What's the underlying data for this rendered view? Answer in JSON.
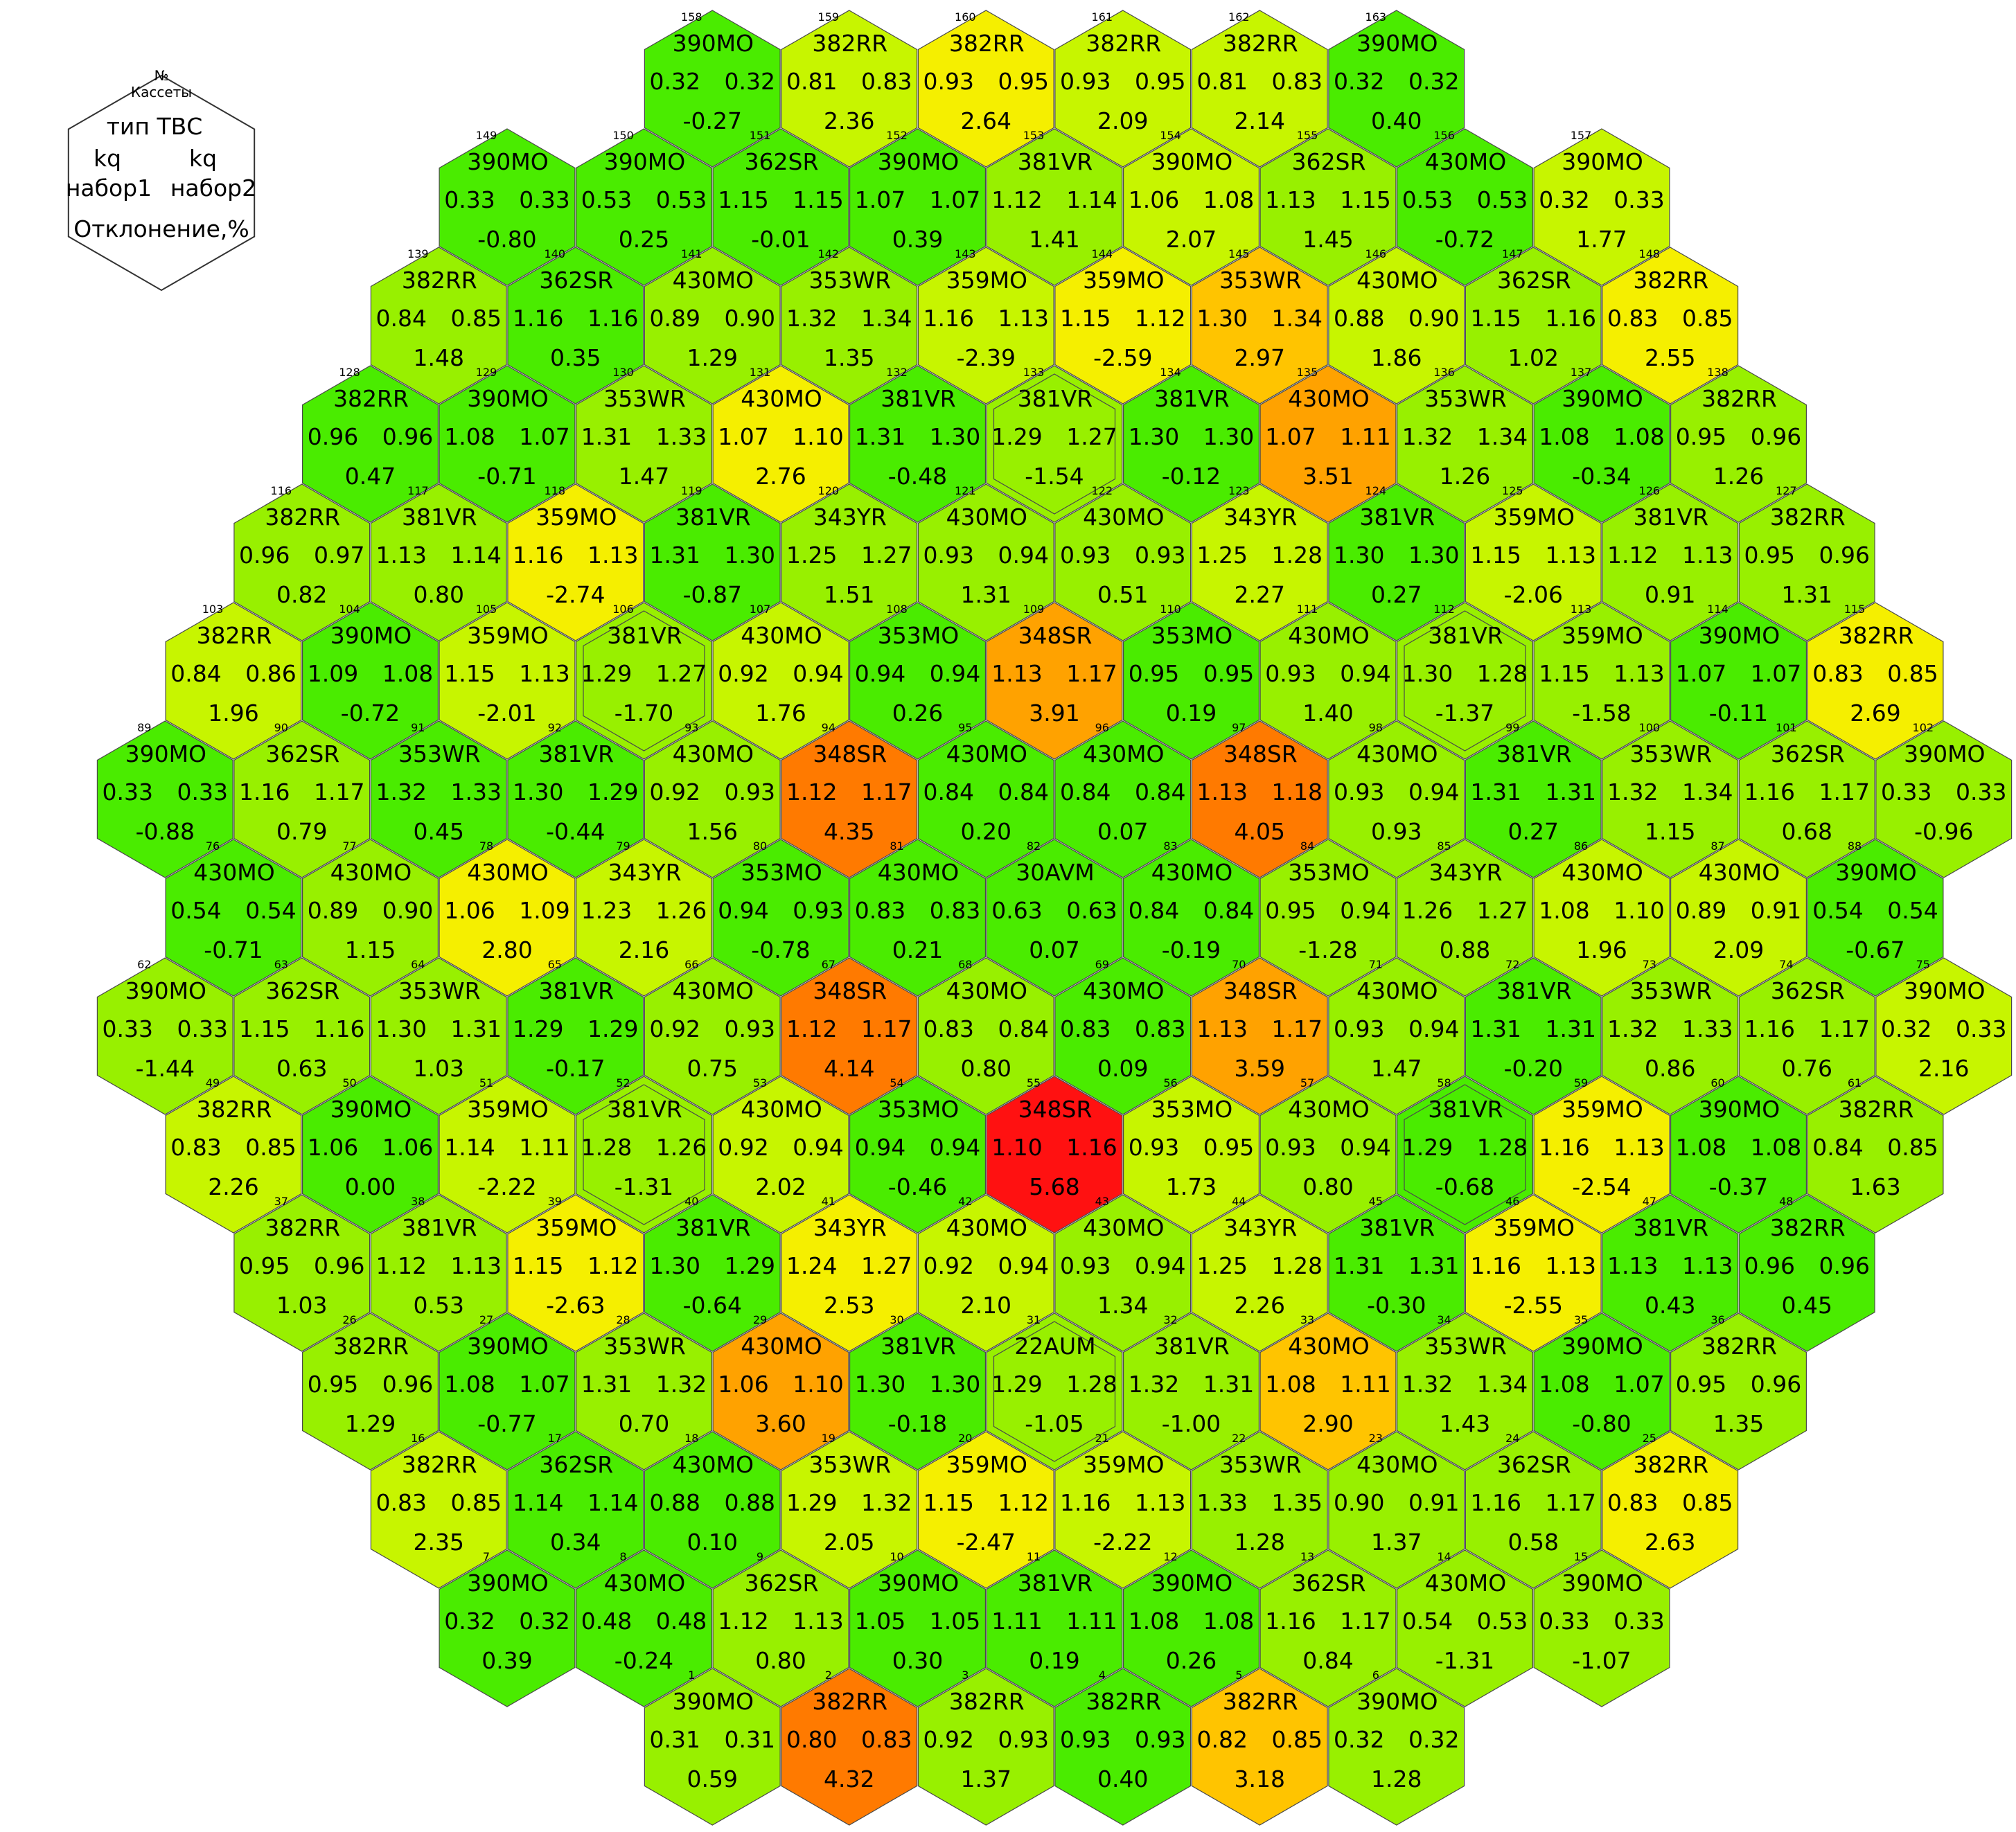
{
  "legend": {
    "num": "№",
    "label": "Кассеты",
    "type_label": "тип ТВС",
    "kq1_label": "kq",
    "kq2_label": "kq",
    "set1_label": "набор1",
    "set2_label": "набор2",
    "deviation_label": "Отклонение,%"
  },
  "colors": {
    "border": "#4a4a4a",
    "legend_border": "#333333",
    "scale": [
      "#00e000",
      "#4aec00",
      "#98f000",
      "#c7f500",
      "#f5ef00",
      "#ffc400",
      "#ffa200",
      "#ff7a00",
      "#ff1111"
    ]
  },
  "rows": [
    {
      "cells": [
        [
          158,
          "390MO",
          "0.32",
          "0.32",
          "-0.27"
        ],
        [
          159,
          "382RR",
          "0.81",
          "0.83",
          "2.36"
        ],
        [
          160,
          "382RR",
          "0.93",
          "0.95",
          "2.64"
        ],
        [
          161,
          "382RR",
          "0.93",
          "0.95",
          "2.09"
        ],
        [
          162,
          "382RR",
          "0.81",
          "0.83",
          "2.14"
        ],
        [
          163,
          "390MO",
          "0.32",
          "0.32",
          "0.40"
        ]
      ]
    },
    {
      "cells": [
        [
          149,
          "390MO",
          "0.33",
          "0.33",
          "-0.80"
        ],
        [
          150,
          "390MO",
          "0.53",
          "0.53",
          "0.25"
        ],
        [
          151,
          "362SR",
          "1.15",
          "1.15",
          "-0.01"
        ],
        [
          152,
          "390MO",
          "1.07",
          "1.07",
          "0.39"
        ],
        [
          153,
          "381VR",
          "1.12",
          "1.14",
          "1.41"
        ],
        [
          154,
          "390MO",
          "1.06",
          "1.08",
          "2.07"
        ],
        [
          155,
          "362SR",
          "1.13",
          "1.15",
          "1.45"
        ],
        [
          156,
          "430MO",
          "0.53",
          "0.53",
          "-0.72"
        ],
        [
          157,
          "390MO",
          "0.32",
          "0.33",
          "1.77"
        ]
      ]
    },
    {
      "cells": [
        [
          139,
          "382RR",
          "0.84",
          "0.85",
          "1.48"
        ],
        [
          140,
          "362SR",
          "1.16",
          "1.16",
          "0.35"
        ],
        [
          141,
          "430MO",
          "0.89",
          "0.90",
          "1.29"
        ],
        [
          142,
          "353WR",
          "1.32",
          "1.34",
          "1.35"
        ],
        [
          143,
          "359MO",
          "1.16",
          "1.13",
          "-2.39"
        ],
        [
          144,
          "359MO",
          "1.15",
          "1.12",
          "-2.59"
        ],
        [
          145,
          "353WR",
          "1.30",
          "1.34",
          "2.97"
        ],
        [
          146,
          "430MO",
          "0.88",
          "0.90",
          "1.86"
        ],
        [
          147,
          "362SR",
          "1.15",
          "1.16",
          "1.02"
        ],
        [
          148,
          "382RR",
          "0.83",
          "0.85",
          "2.55"
        ]
      ]
    },
    {
      "cells": [
        [
          128,
          "382RR",
          "0.96",
          "0.96",
          "0.47"
        ],
        [
          129,
          "390MO",
          "1.08",
          "1.07",
          "-0.71"
        ],
        [
          130,
          "353WR",
          "1.31",
          "1.33",
          "1.47"
        ],
        [
          131,
          "430MO",
          "1.07",
          "1.10",
          "2.76"
        ],
        [
          132,
          "381VR",
          "1.31",
          "1.30",
          "-0.48"
        ],
        [
          133,
          "381VR",
          "1.29",
          "1.27",
          "-1.54"
        ],
        [
          134,
          "381VR",
          "1.30",
          "1.30",
          "-0.12"
        ],
        [
          135,
          "430MO",
          "1.07",
          "1.11",
          "3.51"
        ],
        [
          136,
          "353WR",
          "1.32",
          "1.34",
          "1.26"
        ],
        [
          137,
          "390MO",
          "1.08",
          "1.08",
          "-0.34"
        ],
        [
          138,
          "382RR",
          "0.95",
          "0.96",
          "1.26"
        ]
      ]
    },
    {
      "cells": [
        [
          116,
          "382RR",
          "0.96",
          "0.97",
          "0.82"
        ],
        [
          117,
          "381VR",
          "1.13",
          "1.14",
          "0.80"
        ],
        [
          118,
          "359MO",
          "1.16",
          "1.13",
          "-2.74"
        ],
        [
          119,
          "381VR",
          "1.31",
          "1.30",
          "-0.87"
        ],
        [
          120,
          "343YR",
          "1.25",
          "1.27",
          "1.51"
        ],
        [
          121,
          "430MO",
          "0.93",
          "0.94",
          "1.31"
        ],
        [
          122,
          "430MO",
          "0.93",
          "0.93",
          "0.51"
        ],
        [
          123,
          "343YR",
          "1.25",
          "1.28",
          "2.27"
        ],
        [
          124,
          "381VR",
          "1.30",
          "1.30",
          "0.27"
        ],
        [
          125,
          "359MO",
          "1.15",
          "1.13",
          "-2.06"
        ],
        [
          126,
          "381VR",
          "1.12",
          "1.13",
          "0.91"
        ],
        [
          127,
          "382RR",
          "0.95",
          "0.96",
          "1.31"
        ]
      ]
    },
    {
      "cells": [
        [
          103,
          "382RR",
          "0.84",
          "0.86",
          "1.96"
        ],
        [
          104,
          "390MO",
          "1.09",
          "1.08",
          "-0.72"
        ],
        [
          105,
          "359MO",
          "1.15",
          "1.13",
          "-2.01"
        ],
        [
          106,
          "381VR",
          "1.29",
          "1.27",
          "-1.70"
        ],
        [
          107,
          "430MO",
          "0.92",
          "0.94",
          "1.76"
        ],
        [
          108,
          "353MO",
          "0.94",
          "0.94",
          "0.26"
        ],
        [
          109,
          "348SR",
          "1.13",
          "1.17",
          "3.91"
        ],
        [
          110,
          "353MO",
          "0.95",
          "0.95",
          "0.19"
        ],
        [
          111,
          "430MO",
          "0.93",
          "0.94",
          "1.40"
        ],
        [
          112,
          "381VR",
          "1.30",
          "1.28",
          "-1.37"
        ],
        [
          113,
          "359MO",
          "1.15",
          "1.13",
          "-1.58"
        ],
        [
          114,
          "390MO",
          "1.07",
          "1.07",
          "-0.11"
        ],
        [
          115,
          "382RR",
          "0.83",
          "0.85",
          "2.69"
        ]
      ]
    },
    {
      "cells": [
        [
          89,
          "390MO",
          "0.33",
          "0.33",
          "-0.88"
        ],
        [
          90,
          "362SR",
          "1.16",
          "1.17",
          "0.79"
        ],
        [
          91,
          "353WR",
          "1.32",
          "1.33",
          "0.45"
        ],
        [
          92,
          "381VR",
          "1.30",
          "1.29",
          "-0.44"
        ],
        [
          93,
          "430MO",
          "0.92",
          "0.93",
          "1.56"
        ],
        [
          94,
          "348SR",
          "1.12",
          "1.17",
          "4.35"
        ],
        [
          95,
          "430MO",
          "0.84",
          "0.84",
          "0.20"
        ],
        [
          96,
          "430MO",
          "0.84",
          "0.84",
          "0.07"
        ],
        [
          97,
          "348SR",
          "1.13",
          "1.18",
          "4.05"
        ],
        [
          98,
          "430MO",
          "0.93",
          "0.94",
          "0.93"
        ],
        [
          99,
          "381VR",
          "1.31",
          "1.31",
          "0.27"
        ],
        [
          100,
          "353WR",
          "1.32",
          "1.34",
          "1.15"
        ],
        [
          101,
          "362SR",
          "1.16",
          "1.17",
          "0.68"
        ],
        [
          102,
          "390MO",
          "0.33",
          "0.33",
          "-0.96"
        ]
      ]
    },
    {
      "cells": [
        [
          76,
          "430MO",
          "0.54",
          "0.54",
          "-0.71"
        ],
        [
          77,
          "430MO",
          "0.89",
          "0.90",
          "1.15"
        ],
        [
          78,
          "430MO",
          "1.06",
          "1.09",
          "2.80"
        ],
        [
          79,
          "343YR",
          "1.23",
          "1.26",
          "2.16"
        ],
        [
          80,
          "353MO",
          "0.94",
          "0.93",
          "-0.78"
        ],
        [
          81,
          "430MO",
          "0.83",
          "0.83",
          "0.21"
        ],
        [
          82,
          "30AVM",
          "0.63",
          "0.63",
          "0.07"
        ],
        [
          83,
          "430MO",
          "0.84",
          "0.84",
          "-0.19"
        ],
        [
          84,
          "353MO",
          "0.95",
          "0.94",
          "-1.28"
        ],
        [
          85,
          "343YR",
          "1.26",
          "1.27",
          "0.88"
        ],
        [
          86,
          "430MO",
          "1.08",
          "1.10",
          "1.96"
        ],
        [
          87,
          "430MO",
          "0.89",
          "0.91",
          "2.09"
        ],
        [
          88,
          "390MO",
          "0.54",
          "0.54",
          "-0.67"
        ]
      ]
    },
    {
      "cells": [
        [
          62,
          "390MO",
          "0.33",
          "0.33",
          "-1.44"
        ],
        [
          63,
          "362SR",
          "1.15",
          "1.16",
          "0.63"
        ],
        [
          64,
          "353WR",
          "1.30",
          "1.31",
          "1.03"
        ],
        [
          65,
          "381VR",
          "1.29",
          "1.29",
          "-0.17"
        ],
        [
          66,
          "430MO",
          "0.92",
          "0.93",
          "0.75"
        ],
        [
          67,
          "348SR",
          "1.12",
          "1.17",
          "4.14"
        ],
        [
          68,
          "430MO",
          "0.83",
          "0.84",
          "0.80"
        ],
        [
          69,
          "430MO",
          "0.83",
          "0.83",
          "0.09"
        ],
        [
          70,
          "348SR",
          "1.13",
          "1.17",
          "3.59"
        ],
        [
          71,
          "430MO",
          "0.93",
          "0.94",
          "1.47"
        ],
        [
          72,
          "381VR",
          "1.31",
          "1.31",
          "-0.20"
        ],
        [
          73,
          "353WR",
          "1.32",
          "1.33",
          "0.86"
        ],
        [
          74,
          "362SR",
          "1.16",
          "1.17",
          "0.76"
        ],
        [
          75,
          "390MO",
          "0.32",
          "0.33",
          "2.16"
        ]
      ]
    },
    {
      "cells": [
        [
          49,
          "382RR",
          "0.83",
          "0.85",
          "2.26"
        ],
        [
          50,
          "390MO",
          "1.06",
          "1.06",
          "0.00"
        ],
        [
          51,
          "359MO",
          "1.14",
          "1.11",
          "-2.22"
        ],
        [
          52,
          "381VR",
          "1.28",
          "1.26",
          "-1.31"
        ],
        [
          53,
          "430MO",
          "0.92",
          "0.94",
          "2.02"
        ],
        [
          54,
          "353MO",
          "0.94",
          "0.94",
          "-0.46"
        ],
        [
          55,
          "348SR",
          "1.10",
          "1.16",
          "5.68"
        ],
        [
          56,
          "353MO",
          "0.93",
          "0.95",
          "1.73"
        ],
        [
          57,
          "430MO",
          "0.93",
          "0.94",
          "0.80"
        ],
        [
          58,
          "381VR",
          "1.29",
          "1.28",
          "-0.68"
        ],
        [
          59,
          "359MO",
          "1.16",
          "1.13",
          "-2.54"
        ],
        [
          60,
          "390MO",
          "1.08",
          "1.08",
          "-0.37"
        ],
        [
          61,
          "382RR",
          "0.84",
          "0.85",
          "1.63"
        ]
      ]
    },
    {
      "cells": [
        [
          37,
          "382RR",
          "0.95",
          "0.96",
          "1.03"
        ],
        [
          38,
          "381VR",
          "1.12",
          "1.13",
          "0.53"
        ],
        [
          39,
          "359MO",
          "1.15",
          "1.12",
          "-2.63"
        ],
        [
          40,
          "381VR",
          "1.30",
          "1.29",
          "-0.64"
        ],
        [
          41,
          "343YR",
          "1.24",
          "1.27",
          "2.53"
        ],
        [
          42,
          "430MO",
          "0.92",
          "0.94",
          "2.10"
        ],
        [
          43,
          "430MO",
          "0.93",
          "0.94",
          "1.34"
        ],
        [
          44,
          "343YR",
          "1.25",
          "1.28",
          "2.26"
        ],
        [
          45,
          "381VR",
          "1.31",
          "1.31",
          "-0.30"
        ],
        [
          46,
          "359MO",
          "1.16",
          "1.13",
          "-2.55"
        ],
        [
          47,
          "381VR",
          "1.13",
          "1.13",
          "0.43"
        ],
        [
          48,
          "382RR",
          "0.96",
          "0.96",
          "0.45"
        ]
      ]
    },
    {
      "cells": [
        [
          26,
          "382RR",
          "0.95",
          "0.96",
          "1.29"
        ],
        [
          27,
          "390MO",
          "1.08",
          "1.07",
          "-0.77"
        ],
        [
          28,
          "353WR",
          "1.31",
          "1.32",
          "0.70"
        ],
        [
          29,
          "430MO",
          "1.06",
          "1.10",
          "3.60"
        ],
        [
          30,
          "381VR",
          "1.30",
          "1.30",
          "-0.18"
        ],
        [
          31,
          "22AUM",
          "1.29",
          "1.28",
          "-1.05"
        ],
        [
          32,
          "381VR",
          "1.32",
          "1.31",
          "-1.00"
        ],
        [
          33,
          "430MO",
          "1.08",
          "1.11",
          "2.90"
        ],
        [
          34,
          "353WR",
          "1.32",
          "1.34",
          "1.43"
        ],
        [
          35,
          "390MO",
          "1.08",
          "1.07",
          "-0.80"
        ],
        [
          36,
          "382RR",
          "0.95",
          "0.96",
          "1.35"
        ]
      ]
    },
    {
      "cells": [
        [
          16,
          "382RR",
          "0.83",
          "0.85",
          "2.35"
        ],
        [
          17,
          "362SR",
          "1.14",
          "1.14",
          "0.34"
        ],
        [
          18,
          "430MO",
          "0.88",
          "0.88",
          "0.10"
        ],
        [
          19,
          "353WR",
          "1.29",
          "1.32",
          "2.05"
        ],
        [
          20,
          "359MO",
          "1.15",
          "1.12",
          "-2.47"
        ],
        [
          21,
          "359MO",
          "1.16",
          "1.13",
          "-2.22"
        ],
        [
          22,
          "353WR",
          "1.33",
          "1.35",
          "1.28"
        ],
        [
          23,
          "430MO",
          "0.90",
          "0.91",
          "1.37"
        ],
        [
          24,
          "362SR",
          "1.16",
          "1.17",
          "0.58"
        ],
        [
          25,
          "382RR",
          "0.83",
          "0.85",
          "2.63"
        ]
      ]
    },
    {
      "cells": [
        [
          7,
          "390MO",
          "0.32",
          "0.32",
          "0.39"
        ],
        [
          8,
          "430MO",
          "0.48",
          "0.48",
          "-0.24"
        ],
        [
          9,
          "362SR",
          "1.12",
          "1.13",
          "0.80"
        ],
        [
          10,
          "390MO",
          "1.05",
          "1.05",
          "0.30"
        ],
        [
          11,
          "381VR",
          "1.11",
          "1.11",
          "0.19"
        ],
        [
          12,
          "390MO",
          "1.08",
          "1.08",
          "0.26"
        ],
        [
          13,
          "362SR",
          "1.16",
          "1.17",
          "0.84"
        ],
        [
          14,
          "430MO",
          "0.54",
          "0.53",
          "-1.31"
        ],
        [
          15,
          "390MO",
          "0.33",
          "0.33",
          "-1.07"
        ]
      ]
    },
    {
      "cells": [
        [
          1,
          "390MO",
          "0.31",
          "0.31",
          "0.59"
        ],
        [
          2,
          "382RR",
          "0.80",
          "0.83",
          "4.32"
        ],
        [
          3,
          "382RR",
          "0.92",
          "0.93",
          "1.37"
        ],
        [
          4,
          "382RR",
          "0.93",
          "0.93",
          "0.40"
        ],
        [
          5,
          "382RR",
          "0.82",
          "0.85",
          "3.18"
        ],
        [
          6,
          "390MO",
          "0.32",
          "0.32",
          "1.28"
        ]
      ]
    }
  ],
  "double_border_cells": [
    133,
    106,
    112,
    52,
    58,
    31
  ]
}
